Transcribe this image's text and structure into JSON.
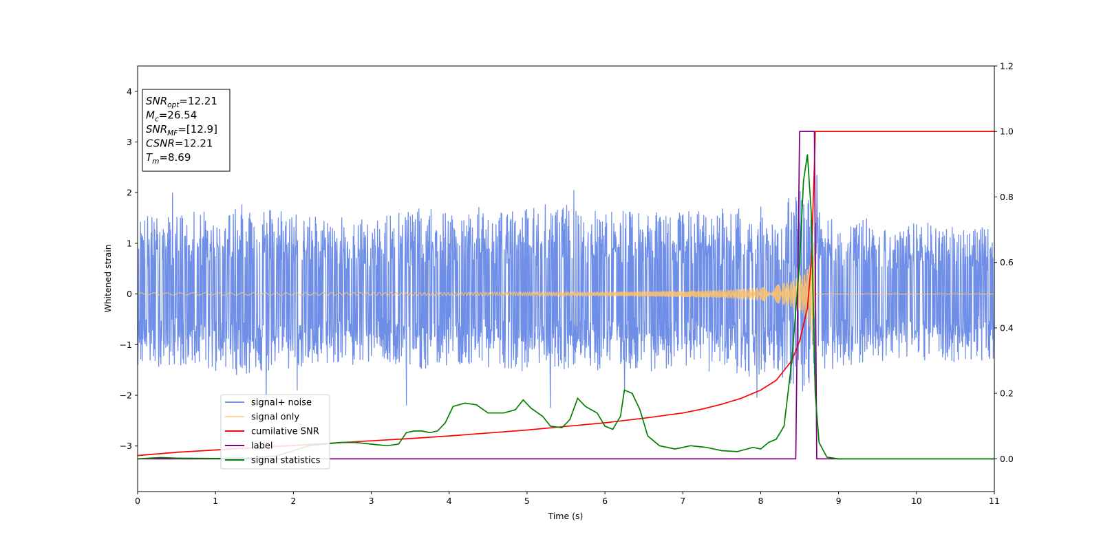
{
  "chart_data": {
    "type": "line",
    "title": "",
    "xlabel": "Time (s)",
    "ylabel": "Whitened strain",
    "y2label": "",
    "xlim": [
      0,
      11
    ],
    "ylim": [
      -3.9,
      4.5
    ],
    "y2lim": [
      -0.1,
      1.2
    ],
    "x_ticks": [
      0,
      1,
      2,
      3,
      4,
      5,
      6,
      7,
      8,
      9,
      10,
      11
    ],
    "y_ticks": [
      -3,
      -2,
      -1,
      0,
      1,
      2,
      3,
      4
    ],
    "y2_ticks": [
      0.0,
      0.2,
      0.4,
      0.6,
      0.8,
      1.0,
      1.2
    ],
    "grid": false,
    "legend_position": "lower-left",
    "annotation": {
      "lines": [
        {
          "sym": "SNR",
          "sub": "opt",
          "value": "=12.21"
        },
        {
          "sym": "M",
          "sub": "c",
          "value": "=26.54"
        },
        {
          "sym": "SNR",
          "sub": "MF",
          "value": "=[12.9]"
        },
        {
          "sym": "CSNR",
          "sub": "",
          "value": "=12.21"
        },
        {
          "sym": "T",
          "sub": "m",
          "value": "=8.69"
        }
      ]
    },
    "series": [
      {
        "name": "signal+ noise",
        "color": "#6f8ee8",
        "axis": "left",
        "envelope": {
          "x": [
            0,
            0.5,
            1,
            1.5,
            2,
            2.5,
            3,
            3.5,
            4,
            4.5,
            5,
            5.5,
            6,
            6.5,
            7,
            7.5,
            8,
            8.5,
            8.7,
            9,
            9.5,
            10,
            10.5,
            11
          ],
          "upper": [
            1.55,
            1.6,
            1.7,
            1.8,
            1.65,
            1.5,
            1.55,
            1.7,
            1.65,
            1.7,
            1.75,
            1.75,
            1.65,
            1.7,
            1.6,
            1.65,
            1.6,
            1.7,
            1.8,
            1.55,
            1.5,
            1.45,
            1.35,
            1.3
          ],
          "lower": [
            -1.4,
            -1.45,
            -1.55,
            -1.6,
            -1.5,
            -1.45,
            -1.4,
            -1.5,
            -1.45,
            -1.5,
            -1.5,
            -1.45,
            -1.5,
            -1.5,
            -1.45,
            -1.5,
            -1.55,
            -1.55,
            -1.6,
            -1.45,
            -1.4,
            -1.35,
            -1.35,
            -1.3
          ]
        },
        "peaks": [
          {
            "x": 0.45,
            "y": 2.0
          },
          {
            "x": 1.65,
            "y": -2.1
          },
          {
            "x": 2.05,
            "y": -1.9
          },
          {
            "x": 3.45,
            "y": -2.2
          },
          {
            "x": 5.3,
            "y": -2.25
          },
          {
            "x": 5.6,
            "y": 2.05
          },
          {
            "x": 6.25,
            "y": -1.95
          },
          {
            "x": 7.95,
            "y": -2.05
          },
          {
            "x": 8.7,
            "y": -1.85
          },
          {
            "x": 8.72,
            "y": 2.35
          }
        ]
      },
      {
        "name": "signal only",
        "color": "#ffc46a",
        "axis": "left",
        "amplitude": {
          "x": [
            0,
            2,
            4,
            6,
            7,
            7.5,
            8,
            8.2,
            8.4,
            8.5,
            8.6,
            8.65,
            8.69,
            8.7,
            11
          ],
          "y": [
            0.02,
            0.025,
            0.03,
            0.04,
            0.06,
            0.08,
            0.13,
            0.18,
            0.26,
            0.34,
            0.5,
            0.8,
            1.25,
            0.0,
            0.0
          ]
        }
      },
      {
        "name": "cumilative SNR",
        "color": "#ff0000",
        "axis": "right",
        "x": [
          0,
          0.5,
          1,
          1.5,
          2,
          2.5,
          3,
          3.5,
          4,
          4.5,
          5,
          5.5,
          6,
          6.5,
          7,
          7.25,
          7.5,
          7.75,
          8,
          8.2,
          8.4,
          8.5,
          8.6,
          8.65,
          8.69,
          8.7,
          11
        ],
        "y": [
          0.01,
          0.02,
          0.027,
          0.034,
          0.041,
          0.048,
          0.055,
          0.062,
          0.07,
          0.079,
          0.088,
          0.099,
          0.11,
          0.124,
          0.14,
          0.152,
          0.167,
          0.185,
          0.21,
          0.24,
          0.3,
          0.36,
          0.46,
          0.6,
          0.9,
          1.0,
          1.0
        ]
      },
      {
        "name": "label",
        "color": "#800080",
        "axis": "right",
        "x": [
          0,
          8.45,
          8.5,
          8.69,
          8.72,
          11
        ],
        "y": [
          0,
          0,
          1,
          1,
          0,
          0
        ]
      },
      {
        "name": "signal statistics",
        "color": "#008000",
        "axis": "right",
        "x": [
          0,
          0.3,
          0.5,
          1.0,
          1.5,
          1.8,
          2.0,
          2.2,
          2.4,
          2.6,
          2.8,
          3.0,
          3.2,
          3.35,
          3.45,
          3.55,
          3.65,
          3.75,
          3.85,
          3.95,
          4.05,
          4.2,
          4.35,
          4.5,
          4.7,
          4.85,
          4.95,
          5.05,
          5.2,
          5.3,
          5.45,
          5.55,
          5.65,
          5.75,
          5.9,
          6.0,
          6.1,
          6.2,
          6.25,
          6.35,
          6.45,
          6.55,
          6.7,
          6.9,
          7.1,
          7.3,
          7.5,
          7.7,
          7.9,
          8.0,
          8.1,
          8.2,
          8.3,
          8.4,
          8.5,
          8.55,
          8.6,
          8.65,
          8.7,
          8.75,
          8.85,
          9.0,
          9.5,
          10,
          11
        ],
        "y": [
          0.0,
          0.004,
          0.002,
          0.001,
          0.003,
          0.01,
          0.025,
          0.04,
          0.045,
          0.05,
          0.05,
          0.045,
          0.04,
          0.045,
          0.08,
          0.085,
          0.085,
          0.08,
          0.085,
          0.11,
          0.16,
          0.17,
          0.165,
          0.14,
          0.14,
          0.15,
          0.18,
          0.155,
          0.13,
          0.1,
          0.095,
          0.12,
          0.185,
          0.16,
          0.14,
          0.1,
          0.09,
          0.13,
          0.21,
          0.2,
          0.15,
          0.07,
          0.04,
          0.03,
          0.04,
          0.035,
          0.025,
          0.022,
          0.035,
          0.03,
          0.05,
          0.06,
          0.1,
          0.3,
          0.6,
          0.85,
          0.93,
          0.75,
          0.2,
          0.05,
          0.005,
          0.0,
          0.0,
          0.0,
          0.0
        ]
      }
    ]
  }
}
